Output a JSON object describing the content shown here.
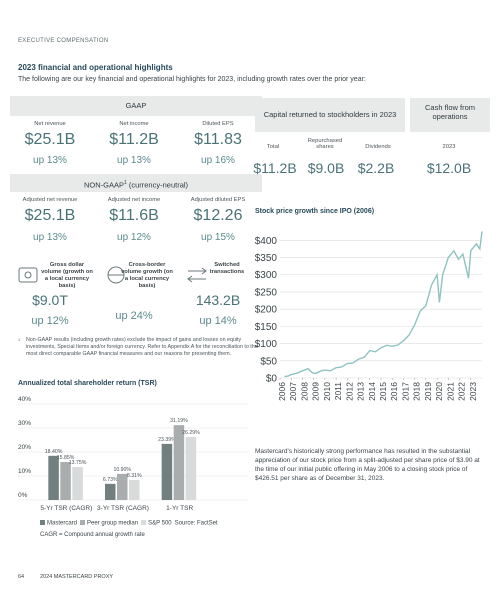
{
  "header": {
    "section": "EXECUTIVE COMPENSATION",
    "title": "2023 financial and operational highlights",
    "intro": "The following are our key financial and operational highlights for 2023, including growth rates over the prior year:"
  },
  "gaap": {
    "title": "GAAP",
    "items": [
      {
        "label": "Net revenue",
        "value": "$25.1B",
        "growth": "up 13%"
      },
      {
        "label": "Net income",
        "value": "$11.2B",
        "growth": "up 13%"
      },
      {
        "label": "Diluted EPS",
        "value": "$11.83",
        "growth": "up 16%"
      }
    ]
  },
  "non_gaap": {
    "title": "NON-GAAP",
    "marker": "1",
    "suffix": "(currency-neutral)",
    "items": [
      {
        "label": "Adjusted net revenue",
        "value": "$25.1B",
        "growth": "up 13%"
      },
      {
        "label": "Adjusted net income",
        "value": "$11.6B",
        "growth": "up 12%"
      },
      {
        "label": "Adjusted diluted EPS",
        "value": "$12.26",
        "growth": "up 15%"
      }
    ]
  },
  "operational": [
    {
      "label": "Gross dollar volume (growth on a local currency basis)",
      "value": "$9.0T",
      "growth": "up 12%"
    },
    {
      "label": "Cross-border volume growth (on a local currency basis)",
      "value": "up 24%"
    },
    {
      "label": "Switched transactions",
      "value": "143.2B",
      "growth": "up 14%"
    }
  ],
  "footnote": {
    "marker": "1",
    "text": "Non-GAAP results (including growth rates) exclude the impact of gains and losses on equity investments, Special Items and/or foreign currency. Refer to Appendix A for the reconciliation to the most direct comparable GAAP financial measures and our reasons for presenting them."
  },
  "capital": {
    "title": "Capital returned to stockholders in 2023",
    "items": [
      {
        "label": "Total",
        "value": "$11.2B"
      },
      {
        "label": "Repurchased shares",
        "value": "$9.0B"
      },
      {
        "label": "Dividends",
        "value": "$2.2B"
      }
    ]
  },
  "cash_flow": {
    "title": "Cash flow from operations",
    "label": "2023",
    "value": "$12.0B"
  },
  "stock_caption": "Mastercard's historically strong performance has resulted in the substantial appreciation of our stock price from a split-adjusted per share price of $3.90 at the time of our initial public offering in May 2006 to a closing stock price of $426.51 per share as of December 31, 2023.",
  "footer": {
    "page": "64",
    "text": "2024 MASTERCARD PROXY"
  },
  "chart_data": [
    {
      "type": "line",
      "title": "Stock price growth since IPO (2006)",
      "color": "#8fc3c1",
      "grid": true,
      "x": [
        2006.4,
        2006.75,
        2007,
        2007.5,
        2008,
        2008.5,
        2008.9,
        2009.2,
        2009.6,
        2010,
        2010.5,
        2011,
        2011.5,
        2012,
        2012.5,
        2013,
        2013.5,
        2014,
        2014.5,
        2015,
        2015.5,
        2016,
        2016.5,
        2017,
        2017.5,
        2018,
        2018.5,
        2019,
        2019.5,
        2020,
        2020.2,
        2020.5,
        2021,
        2021.5,
        2021.9,
        2022.3,
        2022.8,
        2023,
        2023.5,
        2023.8,
        2024
      ],
      "values": [
        4,
        6,
        10,
        14,
        21,
        27,
        15,
        13,
        20,
        23,
        21,
        30,
        32,
        42,
        44,
        55,
        60,
        80,
        76,
        88,
        95,
        92,
        96,
        108,
        125,
        155,
        195,
        210,
        270,
        300,
        220,
        300,
        350,
        370,
        345,
        360,
        290,
        370,
        390,
        375,
        426
      ],
      "xlim": [
        2006,
        2024
      ],
      "xticks": [
        2006,
        2007,
        2008,
        2009,
        2010,
        2011,
        2012,
        2013,
        2014,
        2015,
        2016,
        2017,
        2018,
        2019,
        2020,
        2021,
        2022,
        2023
      ],
      "ylim": [
        0,
        430
      ],
      "yticks": [
        {
          "value": 0,
          "label": "$0"
        },
        {
          "value": 50,
          "label": "$50"
        },
        {
          "value": 100,
          "label": "$100"
        },
        {
          "value": 150,
          "label": "$150"
        },
        {
          "value": 200,
          "label": "$200"
        },
        {
          "value": 250,
          "label": "$250"
        },
        {
          "value": 300,
          "label": "$300"
        },
        {
          "value": 350,
          "label": "$350"
        },
        {
          "value": 400,
          "label": "$400"
        }
      ]
    },
    {
      "type": "bar",
      "title": "Annualized total shareholder return (TSR)",
      "grid": true,
      "categories": [
        "5-Yr TSR (CAGR)",
        "3-Yr TSR (CAGR)",
        "1-Yr TSR"
      ],
      "series": [
        {
          "name": "Mastercard",
          "color": "#71807f",
          "values": [
            18.4,
            6.73,
            23.39
          ],
          "value_labels": [
            "18.40%",
            "6.73%",
            "23.39%"
          ]
        },
        {
          "name": "Peer group median",
          "color": "#a9adad",
          "values": [
            15.85,
            10.9,
            31.19
          ],
          "value_labels": [
            "15.85%",
            "10.90%",
            "31.19%"
          ]
        },
        {
          "name": "S&P 500",
          "color": "#d9dada",
          "values": [
            13.75,
            8.31,
            26.29
          ],
          "value_labels": [
            "13.75%",
            "8.31%",
            "26.29%"
          ]
        }
      ],
      "ylim": [
        0,
        40
      ],
      "yticks": [
        {
          "value": 0,
          "label": "0%"
        },
        {
          "value": 10,
          "label": "10%"
        },
        {
          "value": 20,
          "label": "20%"
        },
        {
          "value": 30,
          "label": "30%"
        },
        {
          "value": 40,
          "label": "40%"
        }
      ],
      "source": "Source: FactSet",
      "note": "CAGR = Compound annual growth rate"
    }
  ]
}
